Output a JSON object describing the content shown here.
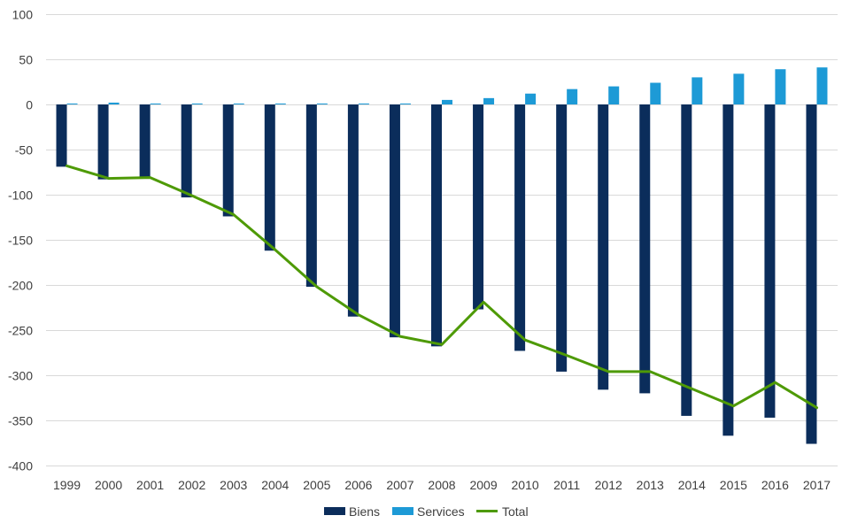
{
  "chart_data": {
    "type": "bar",
    "title": "",
    "xlabel": "",
    "ylabel": "",
    "ylim": [
      -400,
      100
    ],
    "yticks": [
      100,
      50,
      0,
      -50,
      -100,
      -150,
      -200,
      -250,
      -300,
      -350,
      -400
    ],
    "grid": true,
    "legend_position": "bottom",
    "categories": [
      "1999",
      "2000",
      "2001",
      "2002",
      "2003",
      "2004",
      "2005",
      "2006",
      "2007",
      "2008",
      "2009",
      "2010",
      "2011",
      "2012",
      "2013",
      "2014",
      "2015",
      "2016",
      "2017"
    ],
    "series": [
      {
        "name": "Biens",
        "type": "bar",
        "color": "#0b2d5b",
        "values": [
          -69,
          -83,
          -81,
          -103,
          -124,
          -162,
          -202,
          -235,
          -258,
          -268,
          -227,
          -273,
          -296,
          -316,
          -320,
          -345,
          -367,
          -347,
          -376
        ]
      },
      {
        "name": "Services",
        "type": "bar",
        "color": "#1d9ad6",
        "values": [
          1,
          2,
          1,
          1,
          1,
          1,
          1,
          1,
          1,
          5,
          7,
          12,
          17,
          20,
          24,
          30,
          34,
          39,
          41
        ]
      },
      {
        "name": "Total",
        "type": "line",
        "color": "#4e9a06",
        "values": [
          -68,
          -82,
          -81,
          -101,
          -122,
          -161,
          -202,
          -233,
          -257,
          -266,
          -219,
          -261,
          -278,
          -296,
          -296,
          -315,
          -334,
          -308,
          -336
        ]
      }
    ]
  }
}
